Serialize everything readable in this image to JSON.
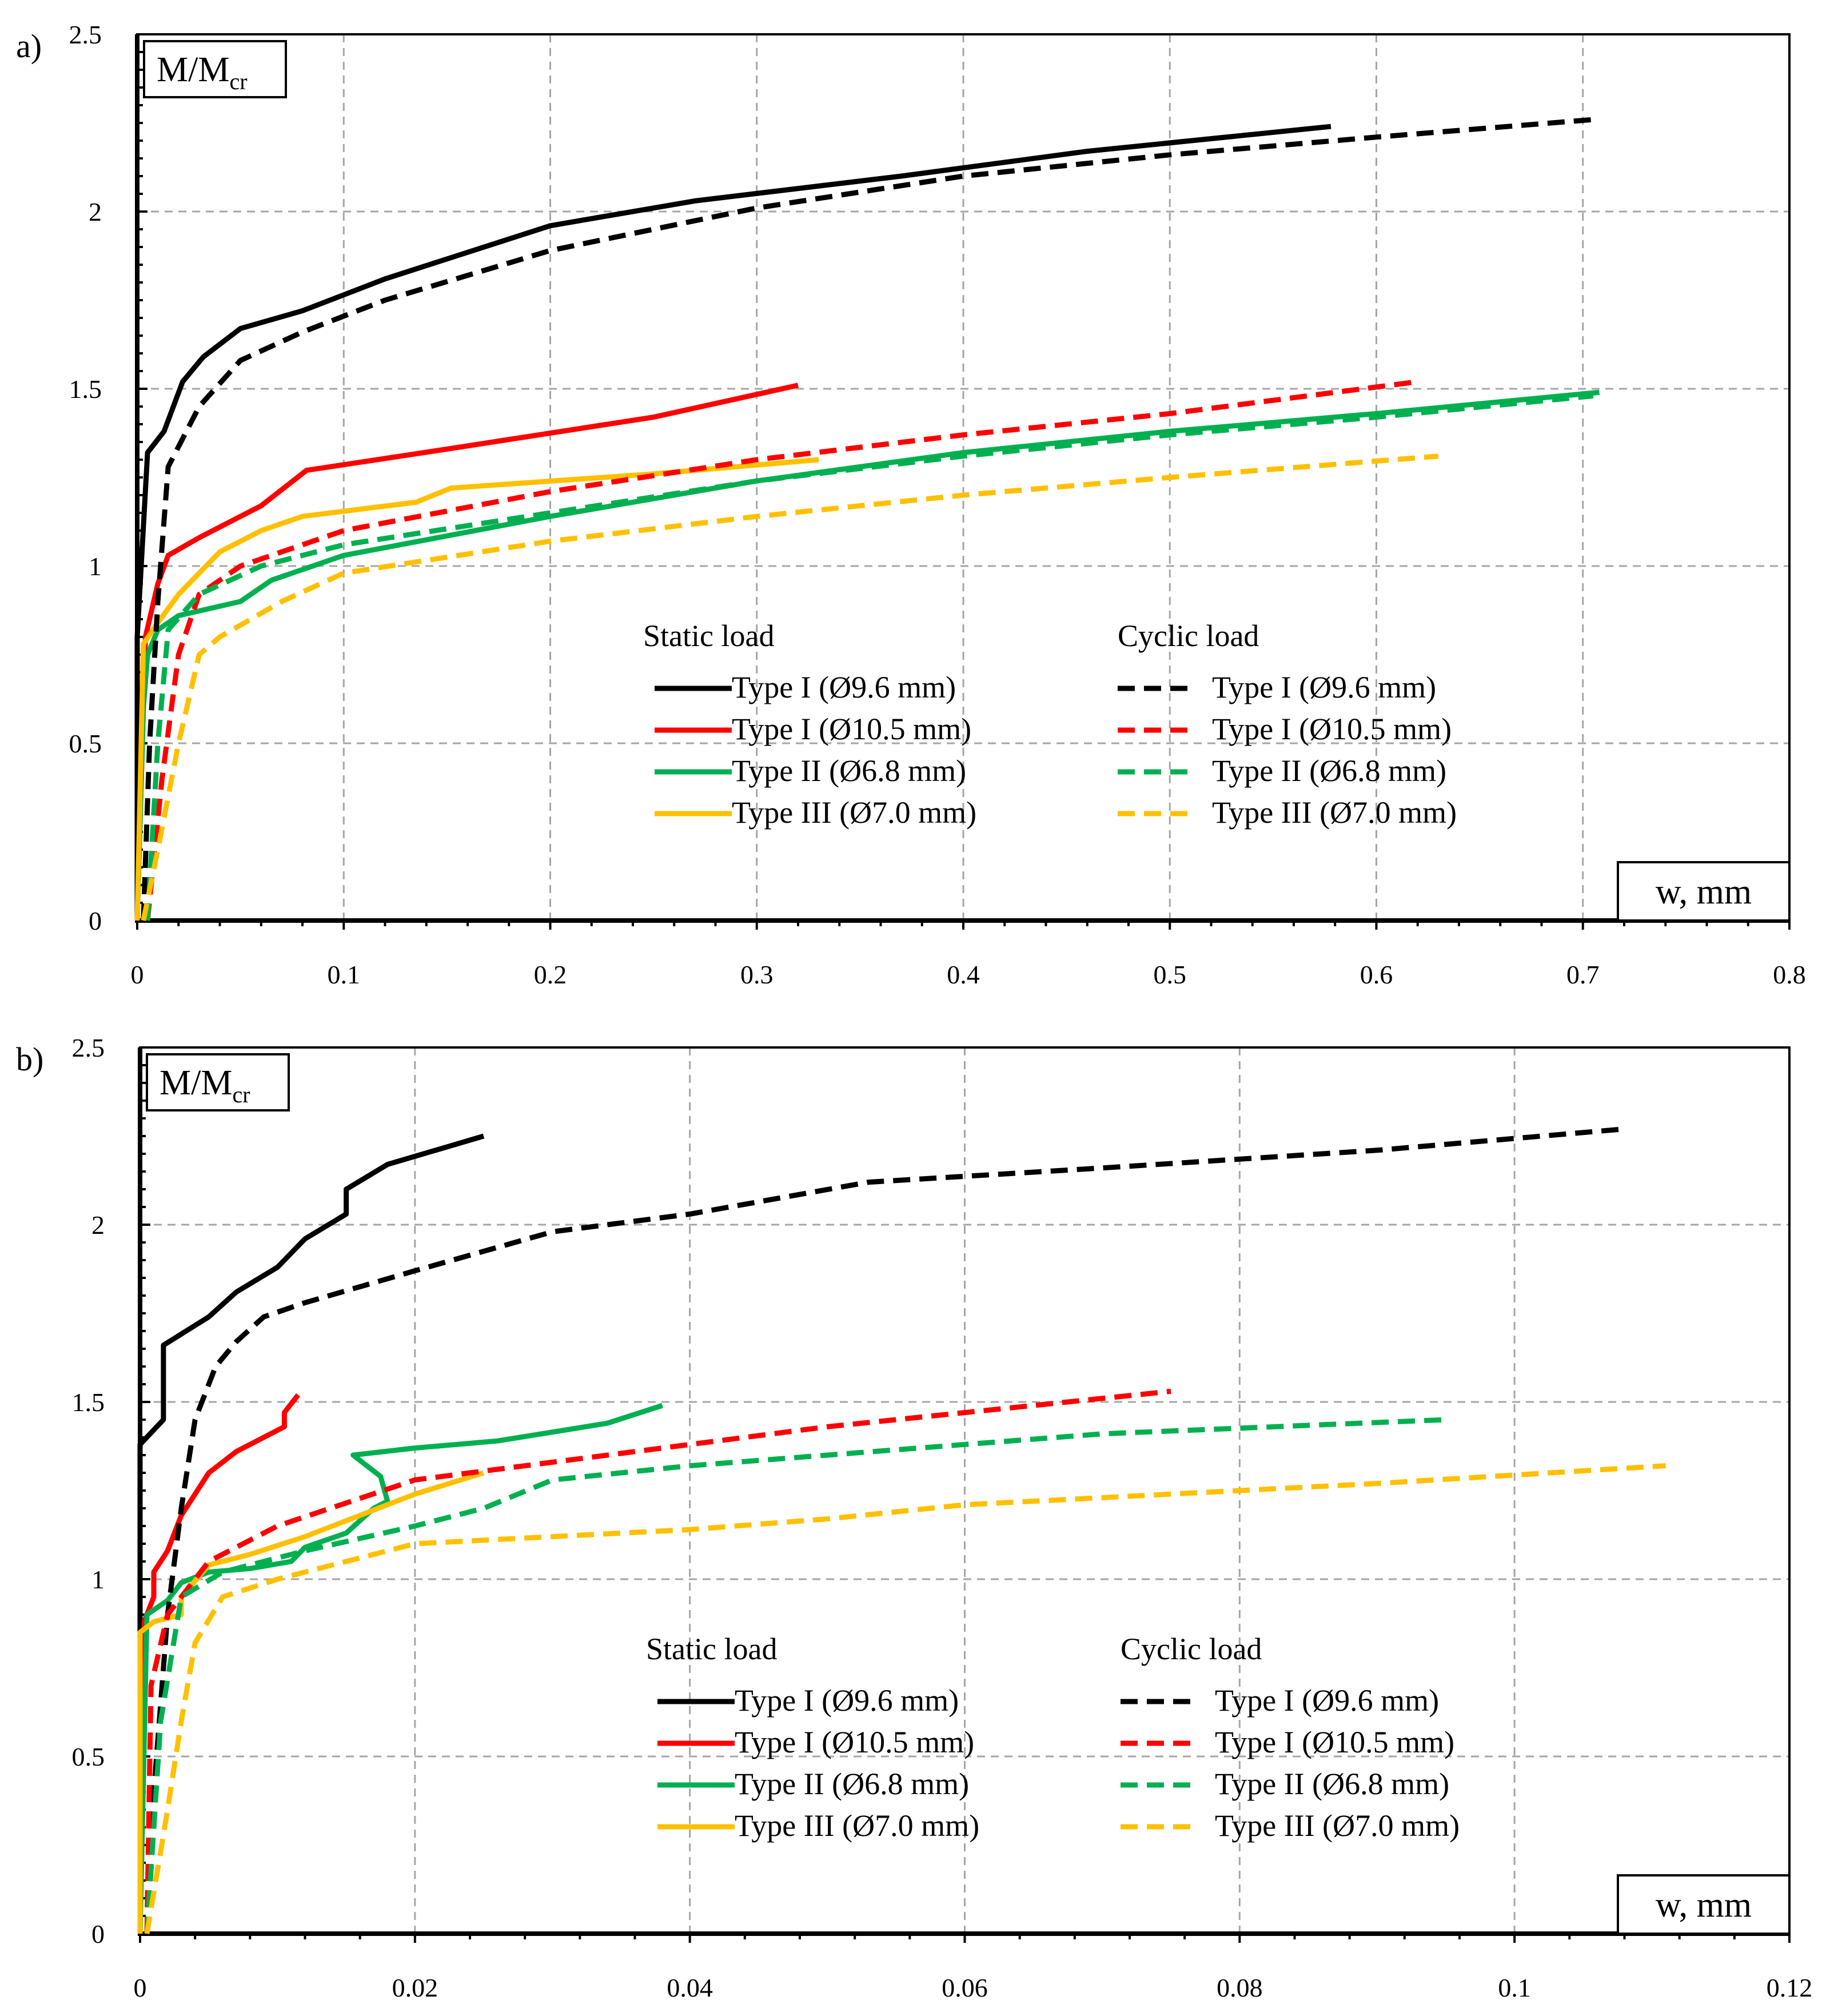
{
  "colors": {
    "black": "#000000",
    "red": "#ff0000",
    "green": "#00b050",
    "yellow": "#ffc000",
    "grid": "#a6a6a6"
  },
  "chart_data": [
    {
      "type": "line",
      "panel_label": "a)",
      "ylabel_main": "M/M",
      "ylabel_sub": "cr",
      "xlabel": "w, mm",
      "xlim": [
        0,
        0.8
      ],
      "ylim": [
        0,
        2.5
      ],
      "xticks": [
        0,
        0.1,
        0.2,
        0.3,
        0.4,
        0.5,
        0.6,
        0.7,
        0.8
      ],
      "xtick_labels": [
        "0",
        "0.1",
        "0.2",
        "0.3",
        "0.4",
        "0.5",
        "0.6",
        "0.7",
        "0.8"
      ],
      "yticks": [
        0,
        0.5,
        1,
        1.5,
        2,
        2.5
      ],
      "ytick_labels": [
        "0",
        "0.5",
        "1",
        "1.5",
        "2",
        "2.5"
      ],
      "grid": true,
      "legend": {
        "placement": "lower-right",
        "static_heading": "Static load",
        "cyclic_heading": "Cyclic load"
      },
      "series": [
        {
          "name": "Type I (Ø9.6 mm)",
          "group": "static",
          "color": "black",
          "dash": false,
          "points": [
            [
              0,
              0
            ],
            [
              0,
              0.8
            ],
            [
              0.005,
              1.32
            ],
            [
              0.013,
              1.38
            ],
            [
              0.022,
              1.52
            ],
            [
              0.032,
              1.59
            ],
            [
              0.05,
              1.67
            ],
            [
              0.08,
              1.72
            ],
            [
              0.12,
              1.81
            ],
            [
              0.2,
              1.96
            ],
            [
              0.27,
              2.03
            ],
            [
              0.37,
              2.1
            ],
            [
              0.46,
              2.17
            ],
            [
              0.578,
              2.24
            ]
          ]
        },
        {
          "name": "Type I (Ø10.5 mm)",
          "group": "static",
          "color": "red",
          "dash": false,
          "points": [
            [
              0,
              0
            ],
            [
              0.004,
              0.8
            ],
            [
              0.01,
              0.95
            ],
            [
              0.015,
              1.03
            ],
            [
              0.03,
              1.08
            ],
            [
              0.06,
              1.17
            ],
            [
              0.082,
              1.27
            ],
            [
              0.15,
              1.33
            ],
            [
              0.25,
              1.42
            ],
            [
              0.32,
              1.51
            ]
          ]
        },
        {
          "name": "Type II (Ø6.8 mm)",
          "group": "static",
          "color": "green",
          "dash": false,
          "points": [
            [
              0,
              0
            ],
            [
              0.003,
              0.6
            ],
            [
              0.005,
              0.75
            ],
            [
              0.01,
              0.82
            ],
            [
              0.02,
              0.86
            ],
            [
              0.05,
              0.9
            ],
            [
              0.065,
              0.96
            ],
            [
              0.1,
              1.03
            ],
            [
              0.2,
              1.14
            ],
            [
              0.3,
              1.24
            ],
            [
              0.4,
              1.32
            ],
            [
              0.5,
              1.38
            ],
            [
              0.6,
              1.43
            ],
            [
              0.708,
              1.49
            ]
          ]
        },
        {
          "name": "Type III (Ø7.0 mm)",
          "group": "static",
          "color": "yellow",
          "dash": false,
          "points": [
            [
              0,
              0
            ],
            [
              0.003,
              0.78
            ],
            [
              0.01,
              0.84
            ],
            [
              0.02,
              0.92
            ],
            [
              0.04,
              1.04
            ],
            [
              0.06,
              1.1
            ],
            [
              0.08,
              1.14
            ],
            [
              0.135,
              1.18
            ],
            [
              0.152,
              1.22
            ],
            [
              0.25,
              1.26
            ],
            [
              0.33,
              1.3
            ]
          ]
        },
        {
          "name": "Type I (Ø9.6 mm)",
          "group": "cyclic",
          "color": "black",
          "dash": true,
          "points": [
            [
              0.003,
              0
            ],
            [
              0.006,
              0.5
            ],
            [
              0.01,
              0.9
            ],
            [
              0.015,
              1.28
            ],
            [
              0.03,
              1.45
            ],
            [
              0.05,
              1.58
            ],
            [
              0.08,
              1.66
            ],
            [
              0.12,
              1.75
            ],
            [
              0.2,
              1.89
            ],
            [
              0.3,
              2.01
            ],
            [
              0.4,
              2.1
            ],
            [
              0.5,
              2.16
            ],
            [
              0.6,
              2.21
            ],
            [
              0.706,
              2.26
            ]
          ]
        },
        {
          "name": "Type I (Ø10.5 mm)",
          "group": "cyclic",
          "color": "red",
          "dash": true,
          "points": [
            [
              0.005,
              0
            ],
            [
              0.012,
              0.4
            ],
            [
              0.02,
              0.75
            ],
            [
              0.03,
              0.92
            ],
            [
              0.05,
              1.0
            ],
            [
              0.1,
              1.1
            ],
            [
              0.2,
              1.21
            ],
            [
              0.3,
              1.3
            ],
            [
              0.4,
              1.37
            ],
            [
              0.5,
              1.43
            ],
            [
              0.62,
              1.52
            ]
          ]
        },
        {
          "name": "Type II (Ø6.8 mm)",
          "group": "cyclic",
          "color": "green",
          "dash": true,
          "points": [
            [
              0.005,
              0
            ],
            [
              0.01,
              0.5
            ],
            [
              0.015,
              0.82
            ],
            [
              0.03,
              0.92
            ],
            [
              0.06,
              1.0
            ],
            [
              0.1,
              1.06
            ],
            [
              0.2,
              1.15
            ],
            [
              0.3,
              1.24
            ],
            [
              0.4,
              1.31
            ],
            [
              0.5,
              1.37
            ],
            [
              0.6,
              1.42
            ],
            [
              0.705,
              1.48
            ]
          ]
        },
        {
          "name": "Type III (Ø7.0 mm)",
          "group": "cyclic",
          "color": "yellow",
          "dash": true,
          "points": [
            [
              0.003,
              0
            ],
            [
              0.01,
              0.2
            ],
            [
              0.02,
              0.5
            ],
            [
              0.03,
              0.75
            ],
            [
              0.04,
              0.8
            ],
            [
              0.07,
              0.9
            ],
            [
              0.1,
              0.98
            ],
            [
              0.2,
              1.07
            ],
            [
              0.3,
              1.14
            ],
            [
              0.4,
              1.2
            ],
            [
              0.5,
              1.25
            ],
            [
              0.63,
              1.31
            ]
          ]
        }
      ]
    },
    {
      "type": "line",
      "panel_label": "b)",
      "ylabel_main": "M/M",
      "ylabel_sub": "cr",
      "xlabel": "w, mm",
      "xlim": [
        0,
        0.12
      ],
      "ylim": [
        0,
        2.5
      ],
      "xticks": [
        0,
        0.02,
        0.04,
        0.06,
        0.08,
        0.1,
        0.12
      ],
      "xtick_labels": [
        "0",
        "0.02",
        "0.04",
        "0.06",
        "0.08",
        "0.1",
        "0.12"
      ],
      "yticks": [
        0,
        0.5,
        1,
        1.5,
        2,
        2.5
      ],
      "ytick_labels": [
        "0",
        "0.5",
        "1",
        "1.5",
        "2",
        "2.5"
      ],
      "grid": true,
      "legend": {
        "placement": "lower-right",
        "static_heading": "Static load",
        "cyclic_heading": "Cyclic load"
      },
      "series": [
        {
          "name": "Type I (Ø9.6 mm)",
          "group": "static",
          "color": "black",
          "dash": false,
          "points": [
            [
              0,
              0
            ],
            [
              0,
              1.38
            ],
            [
              0.0017,
              1.45
            ],
            [
              0.0017,
              1.66
            ],
            [
              0.005,
              1.74
            ],
            [
              0.007,
              1.81
            ],
            [
              0.01,
              1.88
            ],
            [
              0.012,
              1.96
            ],
            [
              0.015,
              2.03
            ],
            [
              0.015,
              2.1
            ],
            [
              0.018,
              2.17
            ],
            [
              0.025,
              2.25
            ]
          ]
        },
        {
          "name": "Type I (Ø10.5 mm)",
          "group": "static",
          "color": "red",
          "dash": false,
          "points": [
            [
              0,
              0
            ],
            [
              0.0003,
              0.88
            ],
            [
              0.001,
              0.95
            ],
            [
              0.001,
              1.02
            ],
            [
              0.002,
              1.08
            ],
            [
              0.0025,
              1.13
            ],
            [
              0.003,
              1.18
            ],
            [
              0.004,
              1.24
            ],
            [
              0.005,
              1.3
            ],
            [
              0.007,
              1.36
            ],
            [
              0.0095,
              1.41
            ],
            [
              0.0105,
              1.43
            ],
            [
              0.0105,
              1.47
            ],
            [
              0.0115,
              1.52
            ]
          ]
        },
        {
          "name": "Type II (Ø6.8 mm)",
          "group": "static",
          "color": "green",
          "dash": false,
          "points": [
            [
              0,
              0
            ],
            [
              0.0005,
              0.9
            ],
            [
              0.002,
              0.94
            ],
            [
              0.003,
              0.99
            ],
            [
              0.005,
              1.02
            ],
            [
              0.008,
              1.03
            ],
            [
              0.011,
              1.05
            ],
            [
              0.012,
              1.09
            ],
            [
              0.015,
              1.13
            ],
            [
              0.017,
              1.2
            ],
            [
              0.018,
              1.22
            ],
            [
              0.0175,
              1.29
            ],
            [
              0.0155,
              1.35
            ],
            [
              0.02,
              1.37
            ],
            [
              0.026,
              1.39
            ],
            [
              0.034,
              1.44
            ],
            [
              0.038,
              1.49
            ]
          ]
        },
        {
          "name": "Type III (Ø7.0 mm)",
          "group": "static",
          "color": "yellow",
          "dash": false,
          "points": [
            [
              0,
              0
            ],
            [
              0,
              0.85
            ],
            [
              0.001,
              0.88
            ],
            [
              0.003,
              0.9
            ],
            [
              0.003,
              0.95
            ],
            [
              0.005,
              1.04
            ],
            [
              0.008,
              1.07
            ],
            [
              0.012,
              1.12
            ],
            [
              0.016,
              1.18
            ],
            [
              0.02,
              1.24
            ],
            [
              0.025,
              1.3
            ]
          ]
        },
        {
          "name": "Type I (Ø9.6 mm)",
          "group": "cyclic",
          "color": "black",
          "dash": true,
          "points": [
            [
              0.0005,
              0
            ],
            [
              0.001,
              0.4
            ],
            [
              0.0015,
              0.65
            ],
            [
              0.002,
              0.9
            ],
            [
              0.003,
              1.2
            ],
            [
              0.004,
              1.45
            ],
            [
              0.0055,
              1.6
            ],
            [
              0.007,
              1.67
            ],
            [
              0.009,
              1.74
            ],
            [
              0.012,
              1.78
            ],
            [
              0.02,
              1.87
            ],
            [
              0.03,
              1.98
            ],
            [
              0.04,
              2.03
            ],
            [
              0.053,
              2.12
            ],
            [
              0.07,
              2.16
            ],
            [
              0.09,
              2.21
            ],
            [
              0.108,
              2.27
            ]
          ]
        },
        {
          "name": "Type I (Ø10.5 mm)",
          "group": "cyclic",
          "color": "red",
          "dash": true,
          "points": [
            [
              0.0005,
              0
            ],
            [
              0.0008,
              0.7
            ],
            [
              0.002,
              0.9
            ],
            [
              0.005,
              1.05
            ],
            [
              0.01,
              1.15
            ],
            [
              0.02,
              1.28
            ],
            [
              0.03,
              1.33
            ],
            [
              0.04,
              1.38
            ],
            [
              0.05,
              1.43
            ],
            [
              0.06,
              1.47
            ],
            [
              0.075,
              1.53
            ]
          ]
        },
        {
          "name": "Type II (Ø6.8 mm)",
          "group": "cyclic",
          "color": "green",
          "dash": true,
          "points": [
            [
              0.0005,
              0
            ],
            [
              0.0015,
              0.6
            ],
            [
              0.003,
              0.95
            ],
            [
              0.006,
              1.02
            ],
            [
              0.012,
              1.08
            ],
            [
              0.02,
              1.15
            ],
            [
              0.025,
              1.2
            ],
            [
              0.03,
              1.28
            ],
            [
              0.04,
              1.32
            ],
            [
              0.05,
              1.35
            ],
            [
              0.06,
              1.38
            ],
            [
              0.07,
              1.41
            ],
            [
              0.095,
              1.45
            ]
          ]
        },
        {
          "name": "Type III (Ø7.0 mm)",
          "group": "cyclic",
          "color": "yellow",
          "dash": true,
          "points": [
            [
              0.0005,
              0
            ],
            [
              0.002,
              0.35
            ],
            [
              0.003,
              0.6
            ],
            [
              0.004,
              0.82
            ],
            [
              0.006,
              0.95
            ],
            [
              0.01,
              1.0
            ],
            [
              0.015,
              1.05
            ],
            [
              0.02,
              1.1
            ],
            [
              0.03,
              1.12
            ],
            [
              0.04,
              1.14
            ],
            [
              0.05,
              1.17
            ],
            [
              0.06,
              1.21
            ],
            [
              0.07,
              1.23
            ],
            [
              0.08,
              1.25
            ],
            [
              0.09,
              1.27
            ],
            [
              0.111,
              1.32
            ]
          ]
        }
      ]
    }
  ]
}
